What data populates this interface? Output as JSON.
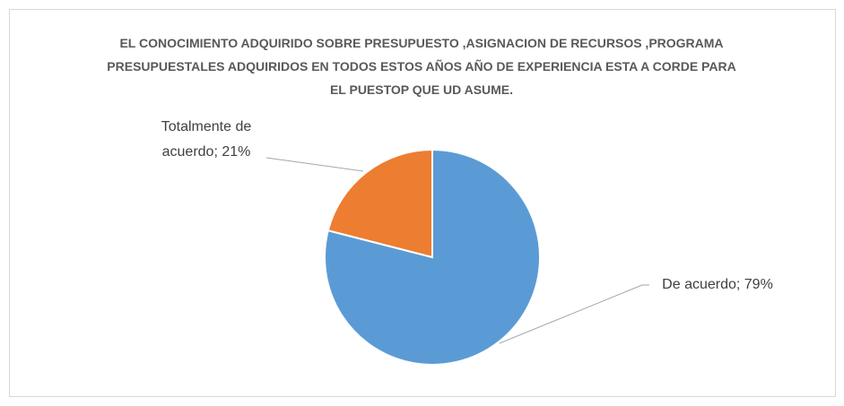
{
  "chart_data": {
    "type": "pie",
    "title": "EL CONOCIMIENTO ADQUIRIDO SOBRE PRESUPUESTO ,ASIGNACION DE RECURSOS ,PROGRAMA PRESUPUESTALES ADQUIRIDOS EN TODOS ESTOS AÑOS AÑO DE EXPERIENCIA ESTA A CORDE PARA EL PUESTOP QUE UD ASUME.",
    "values": [
      79,
      21
    ],
    "value_labels": [
      "De acuerdo; 79%",
      "Totalmente de acuerdo; 21%"
    ],
    "colors": [
      "#5b9bd5",
      "#ed7d31"
    ]
  }
}
